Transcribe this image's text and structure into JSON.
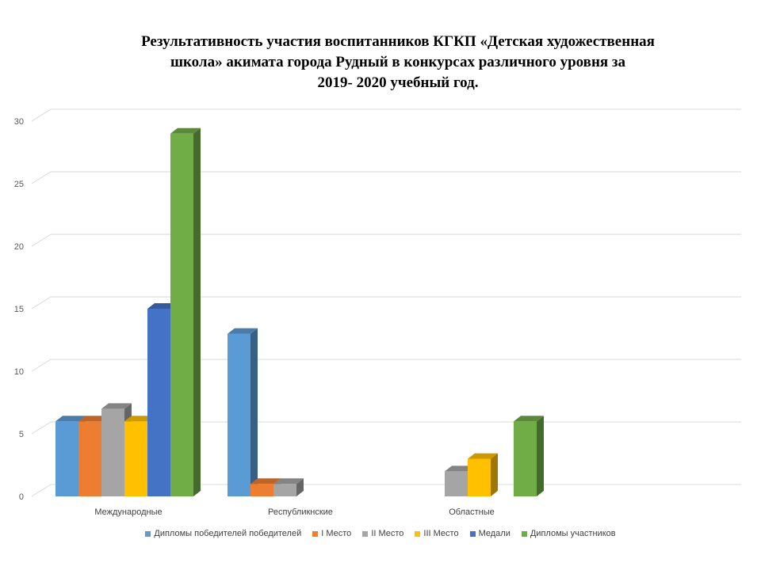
{
  "title_lines": [
    "Результативность  участия воспитанников КГКП «Детская художественная",
    "школа» акимата  города Рудный в конкурсах различного уровня за",
    "2019- 2020 учебный  год."
  ],
  "chart_data": {
    "type": "bar",
    "categories": [
      "Международные",
      "Республикнские",
      "Областные"
    ],
    "series": [
      {
        "name": "Дипломы победителей победителей",
        "color": "#5B9BD5",
        "values": [
          6,
          13,
          0
        ]
      },
      {
        "name": "I Место",
        "color": "#ED7D31",
        "values": [
          6,
          1,
          0
        ]
      },
      {
        "name": "II Место",
        "color": "#A5A5A5",
        "values": [
          7,
          1,
          2
        ]
      },
      {
        "name": "III Место",
        "color": "#FFC000",
        "values": [
          6,
          0,
          3
        ]
      },
      {
        "name": "Медали",
        "color": "#4472C4",
        "values": [
          15,
          0,
          0
        ]
      },
      {
        "name": "Дипломы участников",
        "color": "#70AD47",
        "values": [
          29,
          0,
          6
        ]
      }
    ],
    "ylim": [
      0,
      30
    ],
    "yticks": [
      0,
      5,
      10,
      15,
      20,
      25,
      30
    ],
    "grid": true,
    "legend_position": "bottom",
    "style": "3d-column"
  }
}
